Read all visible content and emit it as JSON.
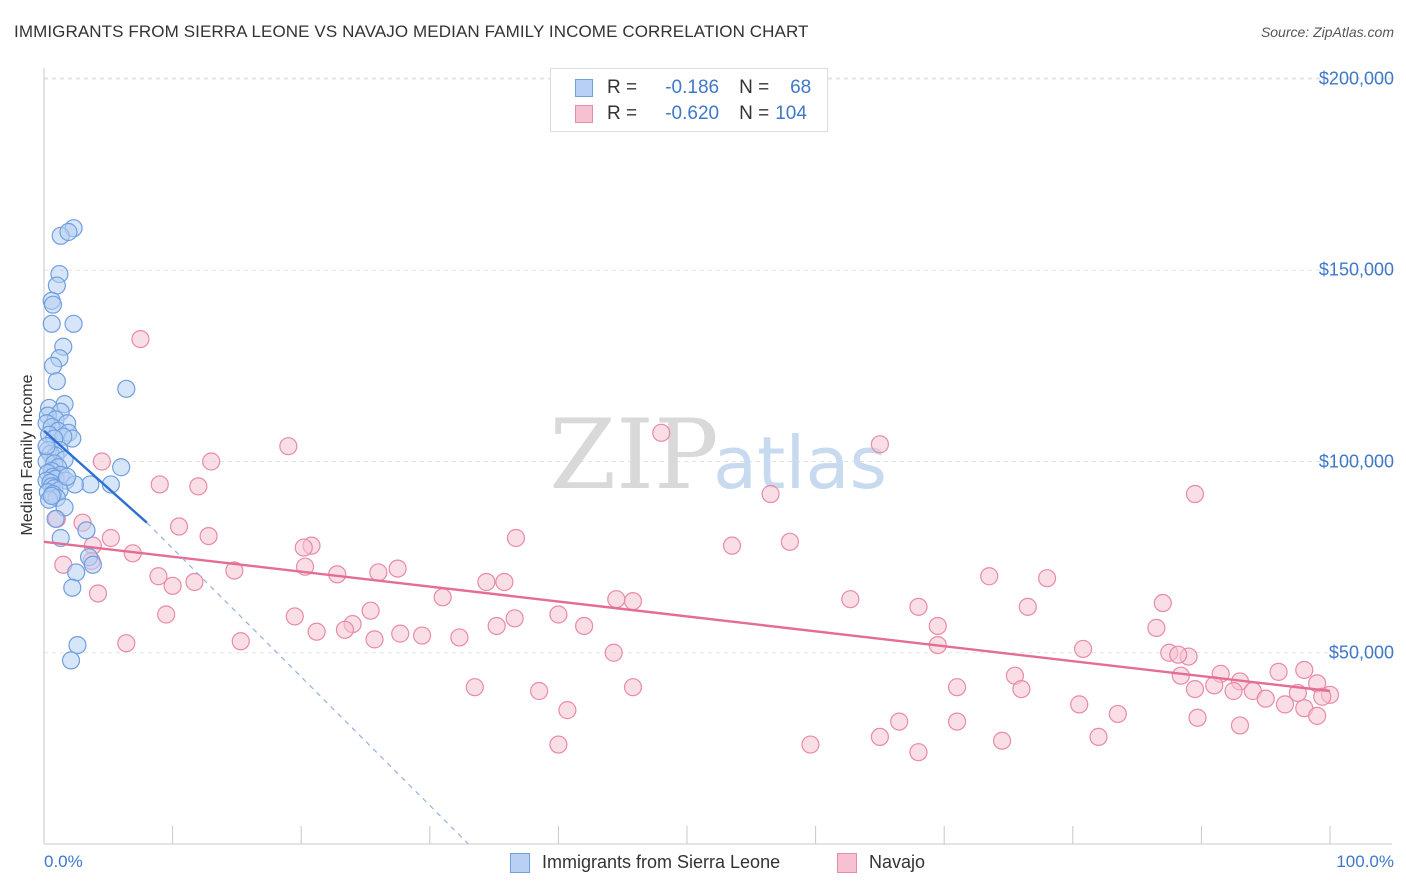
{
  "header": {
    "title": "IMMIGRANTS FROM SIERRA LEONE VS NAVAJO MEDIAN FAMILY INCOME CORRELATION CHART",
    "source": "Source: ZipAtlas.com"
  },
  "watermark": {
    "zip": "ZIP",
    "atlas": "atlas"
  },
  "colors": {
    "blue_fill": "#b7d0f3",
    "blue_stroke": "#6f9fe0",
    "blue_line": "#2e6fd3",
    "pink_fill": "#f6c2d2",
    "pink_stroke": "#e88aa8",
    "pink_line": "#e46c95",
    "accent_text": "#3f78c9"
  },
  "legend": {
    "r_label": "R =",
    "n_label": "N =",
    "series": [
      {
        "name": "Immigrants from Sierra Leone",
        "r": "-0.186",
        "n": "68"
      },
      {
        "name": "Navajo",
        "r": "-0.620",
        "n": "104"
      }
    ]
  },
  "chart_data": {
    "type": "scatter",
    "title": "IMMIGRANTS FROM SIERRA LEONE VS NAVAJO MEDIAN FAMILY INCOME CORRELATION CHART",
    "xlabel": "",
    "ylabel": "Median Family Income",
    "xlim": [
      0,
      100
    ],
    "ylim": [
      0,
      210000
    ],
    "x_tick_labels": [
      "0.0%",
      "100.0%"
    ],
    "y_ticks": [
      {
        "value": 50000,
        "label": "$50,000"
      },
      {
        "value": 100000,
        "label": "$100,000"
      },
      {
        "value": 150000,
        "label": "$150,000"
      },
      {
        "value": 200000,
        "label": "$200,000"
      }
    ],
    "grid": "horizontal dashed",
    "series": [
      {
        "name": "Immigrants from Sierra Leone",
        "color": "blue",
        "trend": {
          "x": [
            0,
            8
          ],
          "y": [
            108000,
            84000
          ],
          "dashed_extension_to": [
            33,
            0
          ]
        },
        "points": [
          [
            2.3,
            161000
          ],
          [
            1.3,
            159000
          ],
          [
            1.9,
            160000
          ],
          [
            1.2,
            149000
          ],
          [
            1.0,
            146000
          ],
          [
            0.6,
            142000
          ],
          [
            0.7,
            141000
          ],
          [
            2.3,
            136000
          ],
          [
            0.6,
            136000
          ],
          [
            1.5,
            130000
          ],
          [
            1.2,
            127000
          ],
          [
            0.7,
            125000
          ],
          [
            1.0,
            121000
          ],
          [
            6.4,
            119000
          ],
          [
            1.6,
            115000
          ],
          [
            0.4,
            114000
          ],
          [
            1.3,
            113000
          ],
          [
            0.3,
            112000
          ],
          [
            0.9,
            111000
          ],
          [
            1.8,
            110000
          ],
          [
            0.2,
            110000
          ],
          [
            0.6,
            109000
          ],
          [
            1.1,
            108000
          ],
          [
            1.9,
            107500
          ],
          [
            0.4,
            107000
          ],
          [
            2.2,
            106000
          ],
          [
            1.5,
            106500
          ],
          [
            0.8,
            106000
          ],
          [
            1.2,
            103000
          ],
          [
            0.3,
            103000
          ],
          [
            0.5,
            102000
          ],
          [
            0.9,
            101500
          ],
          [
            1.6,
            100500
          ],
          [
            0.2,
            100000
          ],
          [
            0.8,
            99500
          ],
          [
            1.1,
            98500
          ],
          [
            6.0,
            98500
          ],
          [
            0.6,
            97500
          ],
          [
            0.3,
            97000
          ],
          [
            1.3,
            96500
          ],
          [
            0.7,
            96000
          ],
          [
            0.9,
            95500
          ],
          [
            0.2,
            95000
          ],
          [
            1.7,
            95000
          ],
          [
            0.5,
            94500
          ],
          [
            3.6,
            94000
          ],
          [
            2.4,
            94000
          ],
          [
            5.2,
            94000
          ],
          [
            0.6,
            93500
          ],
          [
            0.8,
            93000
          ],
          [
            1.2,
            92500
          ],
          [
            0.3,
            92000
          ],
          [
            0.7,
            91500
          ],
          [
            1.0,
            90500
          ],
          [
            0.4,
            90000
          ],
          [
            1.6,
            88000
          ],
          [
            0.9,
            85000
          ],
          [
            3.3,
            82000
          ],
          [
            1.3,
            80000
          ],
          [
            3.5,
            75000
          ],
          [
            3.8,
            73000
          ],
          [
            2.5,
            71000
          ],
          [
            2.2,
            67000
          ],
          [
            2.6,
            52000
          ],
          [
            2.1,
            48000
          ],
          [
            0.6,
            91000
          ],
          [
            1.8,
            96000
          ],
          [
            0.2,
            104000
          ]
        ]
      },
      {
        "name": "Navajo",
        "color": "pink",
        "trend": {
          "x": [
            0,
            100
          ],
          "y": [
            79000,
            40000
          ]
        },
        "points": [
          [
            7.5,
            132000
          ],
          [
            48.0,
            107500
          ],
          [
            65.0,
            104500
          ],
          [
            19.0,
            104000
          ],
          [
            13.0,
            100000
          ],
          [
            4.5,
            100000
          ],
          [
            56.5,
            91500
          ],
          [
            89.5,
            91500
          ],
          [
            9.0,
            94000
          ],
          [
            12.0,
            93500
          ],
          [
            1.0,
            85000
          ],
          [
            3.0,
            84000
          ],
          [
            10.5,
            83000
          ],
          [
            12.8,
            80500
          ],
          [
            5.2,
            80000
          ],
          [
            36.7,
            80000
          ],
          [
            58.0,
            79000
          ],
          [
            53.5,
            78000
          ],
          [
            3.8,
            78000
          ],
          [
            20.8,
            78000
          ],
          [
            20.2,
            77500
          ],
          [
            6.9,
            76000
          ],
          [
            3.7,
            74000
          ],
          [
            20.3,
            72500
          ],
          [
            1.5,
            73000
          ],
          [
            14.8,
            71500
          ],
          [
            27.5,
            72000
          ],
          [
            26.0,
            71000
          ],
          [
            22.8,
            70500
          ],
          [
            73.5,
            70000
          ],
          [
            78.0,
            69500
          ],
          [
            8.9,
            70000
          ],
          [
            11.7,
            68500
          ],
          [
            10.0,
            67500
          ],
          [
            34.4,
            68500
          ],
          [
            35.8,
            68500
          ],
          [
            4.2,
            65500
          ],
          [
            31.0,
            64500
          ],
          [
            45.8,
            63500
          ],
          [
            44.5,
            64000
          ],
          [
            62.7,
            64000
          ],
          [
            68.0,
            62000
          ],
          [
            76.5,
            62000
          ],
          [
            87.0,
            63000
          ],
          [
            25.4,
            61000
          ],
          [
            36.6,
            59000
          ],
          [
            40.0,
            60000
          ],
          [
            9.5,
            60000
          ],
          [
            19.5,
            59500
          ],
          [
            24.0,
            57500
          ],
          [
            42.0,
            57000
          ],
          [
            35.2,
            57000
          ],
          [
            69.5,
            57000
          ],
          [
            86.5,
            56500
          ],
          [
            23.4,
            56000
          ],
          [
            21.2,
            55500
          ],
          [
            27.7,
            55000
          ],
          [
            29.4,
            54500
          ],
          [
            32.3,
            54000
          ],
          [
            25.7,
            53500
          ],
          [
            6.4,
            52500
          ],
          [
            15.3,
            53000
          ],
          [
            69.5,
            52000
          ],
          [
            80.8,
            51000
          ],
          [
            44.3,
            50000
          ],
          [
            87.5,
            50000
          ],
          [
            89.0,
            49000
          ],
          [
            88.2,
            49500
          ],
          [
            98.0,
            45500
          ],
          [
            96.0,
            45000
          ],
          [
            91.5,
            44500
          ],
          [
            75.5,
            44000
          ],
          [
            88.4,
            44000
          ],
          [
            93.0,
            42500
          ],
          [
            99.0,
            42000
          ],
          [
            91.0,
            41500
          ],
          [
            89.5,
            40500
          ],
          [
            94.0,
            40000
          ],
          [
            76.0,
            40500
          ],
          [
            71.0,
            41000
          ],
          [
            92.5,
            40000
          ],
          [
            97.5,
            39500
          ],
          [
            100.0,
            39000
          ],
          [
            99.4,
            38500
          ],
          [
            95.0,
            38000
          ],
          [
            96.5,
            36500
          ],
          [
            98.0,
            35500
          ],
          [
            99.0,
            33500
          ],
          [
            80.5,
            36500
          ],
          [
            83.5,
            34000
          ],
          [
            66.5,
            32000
          ],
          [
            71.0,
            32000
          ],
          [
            89.7,
            33000
          ],
          [
            93.0,
            31000
          ],
          [
            40.7,
            35000
          ],
          [
            38.5,
            40000
          ],
          [
            45.8,
            41000
          ],
          [
            33.5,
            41000
          ],
          [
            59.6,
            26000
          ],
          [
            65.0,
            28000
          ],
          [
            68.0,
            24000
          ],
          [
            74.5,
            27000
          ],
          [
            82.0,
            28000
          ],
          [
            40.0,
            26000
          ]
        ]
      }
    ]
  }
}
